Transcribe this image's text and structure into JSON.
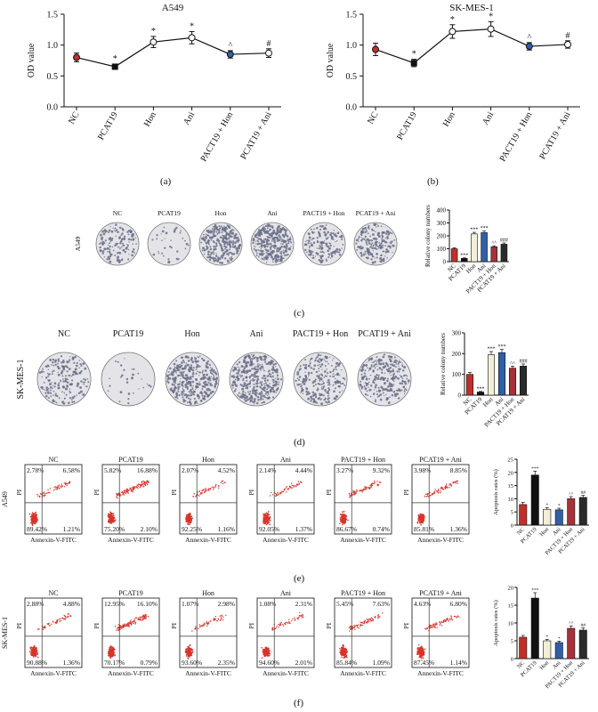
{
  "figure": {
    "panel_labels": [
      "(a)",
      "(b)",
      "(c)",
      "(d)",
      "(e)",
      "(f)"
    ]
  },
  "colors": {
    "nc": "#c0302b",
    "pcat19": "#111111",
    "hon": "#f3eed7",
    "ani": "#2f5fa8",
    "pact_hon": "#a8303a",
    "pcat_ani": "#2b2b2b",
    "scatter": "#d9342b",
    "dish": "#6a6f86"
  },
  "chart_data": [
    {
      "id": "a",
      "type": "line",
      "title": "A549",
      "ylabel": "OD value",
      "categories": [
        "NC",
        "PCAT19",
        "Hon",
        "Ani",
        "PACT19 + Hon",
        "PCAT19 + Ani"
      ],
      "values": [
        0.8,
        0.65,
        1.05,
        1.12,
        0.85,
        0.87
      ],
      "errors": [
        0.07,
        0.04,
        0.09,
        0.1,
        0.06,
        0.07
      ],
      "annotations": [
        "",
        "*",
        "*",
        "*",
        "^",
        "#"
      ],
      "ylim": [
        0.0,
        1.5
      ],
      "yticks": [
        "0.0",
        "0.5",
        "1.0",
        "1.5"
      ]
    },
    {
      "id": "b",
      "type": "line",
      "title": "SK-MES-1",
      "ylabel": "OD value",
      "categories": [
        "NC",
        "PCAT19",
        "Hon",
        "Ani",
        "PACT19 + Hon",
        "PCAT19 + Ani"
      ],
      "values": [
        0.93,
        0.71,
        1.22,
        1.26,
        0.98,
        1.01
      ],
      "errors": [
        0.1,
        0.06,
        0.11,
        0.12,
        0.06,
        0.06
      ],
      "annotations": [
        "",
        "*",
        "*",
        "*",
        "^",
        "#"
      ],
      "ylim": [
        0.0,
        1.5
      ],
      "yticks": [
        "0.0",
        "0.5",
        "1.0",
        "1.5"
      ]
    },
    {
      "id": "c",
      "type": "bar",
      "row_label": "A549",
      "image_labels": [
        "NC",
        "PCAT19",
        "Hon",
        "Ani",
        "PACT19 + Hon",
        "PCAT19 + Ani"
      ],
      "ylabel": "Relative colony numbers",
      "categories": [
        "NC",
        "PCAT19",
        "Hon",
        "Ani",
        "PACT19 + Hon",
        "PCAT19 + Ani"
      ],
      "values": [
        100,
        25,
        215,
        225,
        115,
        135
      ],
      "errors": [
        8,
        4,
        12,
        12,
        8,
        10
      ],
      "annotations": [
        "",
        "***",
        "***",
        "***",
        "^^",
        "###"
      ],
      "ylim": [
        0,
        400
      ],
      "yticks": [
        "0",
        "100",
        "200",
        "300",
        "400"
      ]
    },
    {
      "id": "d",
      "type": "bar",
      "row_label": "SK-MES-1",
      "image_labels": [
        "NC",
        "PCAT19",
        "Hon",
        "Ani",
        "PACT19 + Hon",
        "PCAT19 + Ani"
      ],
      "ylabel": "Relative colony numbers",
      "categories": [
        "NC",
        "PCAT19",
        "Hon",
        "Ani",
        "PACT19 + Hon",
        "PCAT19 + Ani"
      ],
      "values": [
        100,
        15,
        195,
        205,
        130,
        140
      ],
      "errors": [
        10,
        3,
        15,
        15,
        10,
        10
      ],
      "annotations": [
        "",
        "***",
        "***",
        "***",
        "^^",
        "###"
      ],
      "ylim": [
        0,
        300
      ],
      "yticks": [
        "0",
        "100",
        "200",
        "300"
      ]
    },
    {
      "id": "e",
      "type": "bar",
      "row_label": "A549",
      "flow_titles": [
        "NC",
        "PCAT19",
        "Hon",
        "Ani",
        "PACT19 + Hon",
        "PCAT19 + Ani"
      ],
      "flow_quadrants": [
        [
          "2.78%",
          "6.58%",
          "89.42%",
          "1.21%"
        ],
        [
          "5.82%",
          "16.88%",
          "75.20%",
          "2.10%"
        ],
        [
          "2.07%",
          "4.52%",
          "92.25%",
          "1.16%"
        ],
        [
          "2.14%",
          "4.44%",
          "92.05%",
          "1.37%"
        ],
        [
          "3.27%",
          "9.32%",
          "86.67%",
          "0.74%"
        ],
        [
          "3.98%",
          "8.85%",
          "85.81%",
          "1.36%"
        ]
      ],
      "flow_xlabel": "Annexin-V-FITC",
      "flow_ylabel": "PI",
      "ylabel": "Apoptosis rates (%)",
      "categories": [
        "NC",
        "PCAT19",
        "Hon",
        "Ani",
        "PACT19 + Hon",
        "PCAT19 + Ani"
      ],
      "values": [
        7.8,
        19.0,
        6.0,
        5.8,
        10.0,
        10.5
      ],
      "errors": [
        0.8,
        1.5,
        0.6,
        0.6,
        0.8,
        0.8
      ],
      "annotations": [
        "",
        "***",
        "*",
        "*",
        "^^",
        "##"
      ],
      "ylim": [
        0,
        25
      ],
      "yticks": [
        "0",
        "5",
        "10",
        "15",
        "20",
        "25"
      ]
    },
    {
      "id": "f",
      "type": "bar",
      "row_label": "SK-MES-1",
      "flow_titles": [
        "NC",
        "PCAT19",
        "Hon",
        "Ani",
        "PACT19 + Hon",
        "PCAT19 + Ani"
      ],
      "flow_quadrants": [
        [
          "2.88%",
          "4.88%",
          "90.88%",
          "1.36%"
        ],
        [
          "12.95%",
          "16.10%",
          "70.17%",
          "0.79%"
        ],
        [
          "1.07%",
          "2.98%",
          "93.60%",
          "2.35%"
        ],
        [
          "1.08%",
          "2.31%",
          "94.60%",
          "2.01%"
        ],
        [
          "5.45%",
          "7.63%",
          "85.84%",
          "1.09%"
        ],
        [
          "4.63%",
          "6.80%",
          "87.45%",
          "1.14%"
        ]
      ],
      "flow_xlabel": "Annexin-V-FITC",
      "flow_ylabel": "PI",
      "ylabel": "Apoptosis rates (%)",
      "categories": [
        "NC",
        "PCAT19",
        "Hon",
        "Ani",
        "PACT19 + Hon",
        "PCAT19 + Ani"
      ],
      "values": [
        6.0,
        17.0,
        5.0,
        4.5,
        8.5,
        8.0
      ],
      "errors": [
        0.5,
        1.5,
        0.4,
        0.4,
        0.7,
        0.6
      ],
      "annotations": [
        "",
        "***",
        "*",
        "*",
        "^^",
        "##"
      ],
      "ylim": [
        0,
        20
      ],
      "yticks": [
        "0",
        "5",
        "10",
        "15",
        "20"
      ]
    }
  ]
}
